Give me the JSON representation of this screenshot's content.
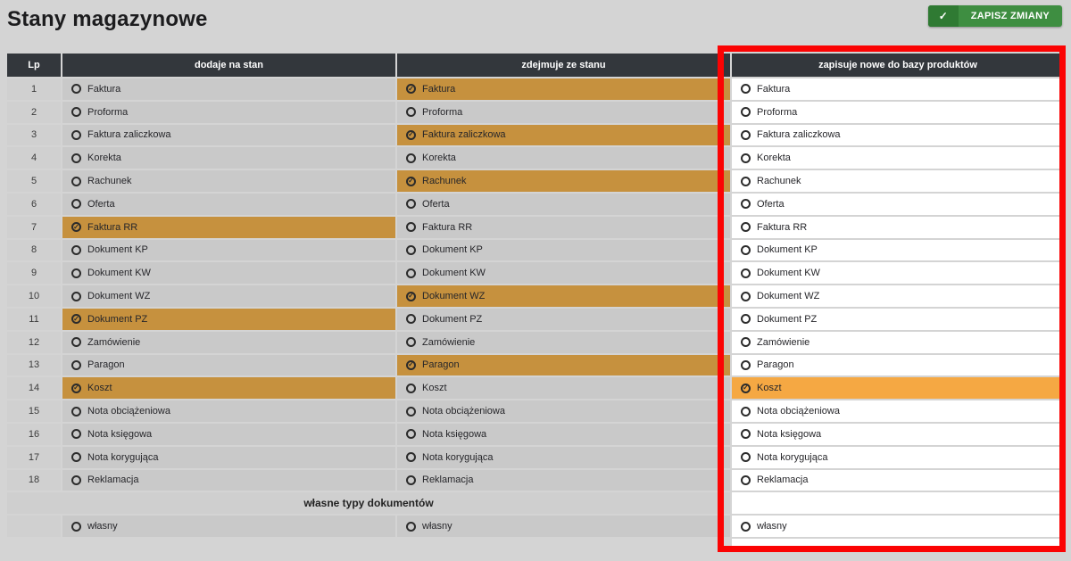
{
  "page": {
    "title": "Stany magazynowe"
  },
  "toolbar": {
    "save_label": "ZAPISZ ZMIANY"
  },
  "icons": {
    "check": "✓"
  },
  "colors": {
    "selected_muted": "#c6913e",
    "selected_bright": "#f5a843",
    "highlight_frame": "#fb0303",
    "header_bg": "#33373c",
    "button_green": "#3e8e41"
  },
  "table": {
    "headers": {
      "lp": "Lp",
      "add": "dodaje na stan",
      "remove": "zdejmuje ze stanu",
      "save": "zapisuje nowe do bazy produktów"
    },
    "rows": [
      {
        "lp": "1",
        "label": "Faktura",
        "add": false,
        "remove": true,
        "save": false
      },
      {
        "lp": "2",
        "label": "Proforma",
        "add": false,
        "remove": false,
        "save": false
      },
      {
        "lp": "3",
        "label": "Faktura zaliczkowa",
        "add": false,
        "remove": true,
        "save": false
      },
      {
        "lp": "4",
        "label": "Korekta",
        "add": false,
        "remove": false,
        "save": false
      },
      {
        "lp": "5",
        "label": "Rachunek",
        "add": false,
        "remove": true,
        "save": false
      },
      {
        "lp": "6",
        "label": "Oferta",
        "add": false,
        "remove": false,
        "save": false
      },
      {
        "lp": "7",
        "label": "Faktura RR",
        "add": true,
        "remove": false,
        "save": false
      },
      {
        "lp": "8",
        "label": "Dokument KP",
        "add": false,
        "remove": false,
        "save": false
      },
      {
        "lp": "9",
        "label": "Dokument KW",
        "add": false,
        "remove": false,
        "save": false
      },
      {
        "lp": "10",
        "label": "Dokument WZ",
        "add": false,
        "remove": true,
        "save": false
      },
      {
        "lp": "11",
        "label": "Dokument PZ",
        "add": true,
        "remove": false,
        "save": false
      },
      {
        "lp": "12",
        "label": "Zamówienie",
        "add": false,
        "remove": false,
        "save": false
      },
      {
        "lp": "13",
        "label": "Paragon",
        "add": false,
        "remove": true,
        "save": false
      },
      {
        "lp": "14",
        "label": "Koszt",
        "add": true,
        "remove": false,
        "save": true
      },
      {
        "lp": "15",
        "label": "Nota obciążeniowa",
        "add": false,
        "remove": false,
        "save": false
      },
      {
        "lp": "16",
        "label": "Nota księgowa",
        "add": false,
        "remove": false,
        "save": false
      },
      {
        "lp": "17",
        "label": "Nota korygująca",
        "add": false,
        "remove": false,
        "save": false
      },
      {
        "lp": "18",
        "label": "Reklamacja",
        "add": false,
        "remove": false,
        "save": false
      }
    ],
    "custom_section_label": "własne typy dokumentów",
    "custom_row_label": "własny"
  }
}
